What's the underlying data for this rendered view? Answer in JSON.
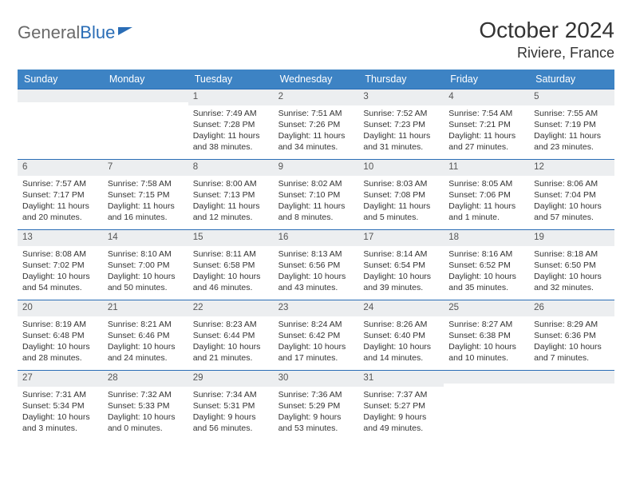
{
  "logo": {
    "part1": "General",
    "part2": "Blue"
  },
  "title": "October 2024",
  "location": "Riviere, France",
  "colors": {
    "brand_blue": "#2a6db6",
    "header_bg": "#3d83c4",
    "header_text": "#ffffff",
    "daynum_bg": "#eceef0",
    "text": "#333333",
    "border": "#2a6db6"
  },
  "dayHeaders": [
    "Sunday",
    "Monday",
    "Tuesday",
    "Wednesday",
    "Thursday",
    "Friday",
    "Saturday"
  ],
  "weeks": [
    [
      {
        "n": "",
        "lines": []
      },
      {
        "n": "",
        "lines": []
      },
      {
        "n": "1",
        "lines": [
          "Sunrise: 7:49 AM",
          "Sunset: 7:28 PM",
          "Daylight: 11 hours",
          "and 38 minutes."
        ]
      },
      {
        "n": "2",
        "lines": [
          "Sunrise: 7:51 AM",
          "Sunset: 7:26 PM",
          "Daylight: 11 hours",
          "and 34 minutes."
        ]
      },
      {
        "n": "3",
        "lines": [
          "Sunrise: 7:52 AM",
          "Sunset: 7:23 PM",
          "Daylight: 11 hours",
          "and 31 minutes."
        ]
      },
      {
        "n": "4",
        "lines": [
          "Sunrise: 7:54 AM",
          "Sunset: 7:21 PM",
          "Daylight: 11 hours",
          "and 27 minutes."
        ]
      },
      {
        "n": "5",
        "lines": [
          "Sunrise: 7:55 AM",
          "Sunset: 7:19 PM",
          "Daylight: 11 hours",
          "and 23 minutes."
        ]
      }
    ],
    [
      {
        "n": "6",
        "lines": [
          "Sunrise: 7:57 AM",
          "Sunset: 7:17 PM",
          "Daylight: 11 hours",
          "and 20 minutes."
        ]
      },
      {
        "n": "7",
        "lines": [
          "Sunrise: 7:58 AM",
          "Sunset: 7:15 PM",
          "Daylight: 11 hours",
          "and 16 minutes."
        ]
      },
      {
        "n": "8",
        "lines": [
          "Sunrise: 8:00 AM",
          "Sunset: 7:13 PM",
          "Daylight: 11 hours",
          "and 12 minutes."
        ]
      },
      {
        "n": "9",
        "lines": [
          "Sunrise: 8:02 AM",
          "Sunset: 7:10 PM",
          "Daylight: 11 hours",
          "and 8 minutes."
        ]
      },
      {
        "n": "10",
        "lines": [
          "Sunrise: 8:03 AM",
          "Sunset: 7:08 PM",
          "Daylight: 11 hours",
          "and 5 minutes."
        ]
      },
      {
        "n": "11",
        "lines": [
          "Sunrise: 8:05 AM",
          "Sunset: 7:06 PM",
          "Daylight: 11 hours",
          "and 1 minute."
        ]
      },
      {
        "n": "12",
        "lines": [
          "Sunrise: 8:06 AM",
          "Sunset: 7:04 PM",
          "Daylight: 10 hours",
          "and 57 minutes."
        ]
      }
    ],
    [
      {
        "n": "13",
        "lines": [
          "Sunrise: 8:08 AM",
          "Sunset: 7:02 PM",
          "Daylight: 10 hours",
          "and 54 minutes."
        ]
      },
      {
        "n": "14",
        "lines": [
          "Sunrise: 8:10 AM",
          "Sunset: 7:00 PM",
          "Daylight: 10 hours",
          "and 50 minutes."
        ]
      },
      {
        "n": "15",
        "lines": [
          "Sunrise: 8:11 AM",
          "Sunset: 6:58 PM",
          "Daylight: 10 hours",
          "and 46 minutes."
        ]
      },
      {
        "n": "16",
        "lines": [
          "Sunrise: 8:13 AM",
          "Sunset: 6:56 PM",
          "Daylight: 10 hours",
          "and 43 minutes."
        ]
      },
      {
        "n": "17",
        "lines": [
          "Sunrise: 8:14 AM",
          "Sunset: 6:54 PM",
          "Daylight: 10 hours",
          "and 39 minutes."
        ]
      },
      {
        "n": "18",
        "lines": [
          "Sunrise: 8:16 AM",
          "Sunset: 6:52 PM",
          "Daylight: 10 hours",
          "and 35 minutes."
        ]
      },
      {
        "n": "19",
        "lines": [
          "Sunrise: 8:18 AM",
          "Sunset: 6:50 PM",
          "Daylight: 10 hours",
          "and 32 minutes."
        ]
      }
    ],
    [
      {
        "n": "20",
        "lines": [
          "Sunrise: 8:19 AM",
          "Sunset: 6:48 PM",
          "Daylight: 10 hours",
          "and 28 minutes."
        ]
      },
      {
        "n": "21",
        "lines": [
          "Sunrise: 8:21 AM",
          "Sunset: 6:46 PM",
          "Daylight: 10 hours",
          "and 24 minutes."
        ]
      },
      {
        "n": "22",
        "lines": [
          "Sunrise: 8:23 AM",
          "Sunset: 6:44 PM",
          "Daylight: 10 hours",
          "and 21 minutes."
        ]
      },
      {
        "n": "23",
        "lines": [
          "Sunrise: 8:24 AM",
          "Sunset: 6:42 PM",
          "Daylight: 10 hours",
          "and 17 minutes."
        ]
      },
      {
        "n": "24",
        "lines": [
          "Sunrise: 8:26 AM",
          "Sunset: 6:40 PM",
          "Daylight: 10 hours",
          "and 14 minutes."
        ]
      },
      {
        "n": "25",
        "lines": [
          "Sunrise: 8:27 AM",
          "Sunset: 6:38 PM",
          "Daylight: 10 hours",
          "and 10 minutes."
        ]
      },
      {
        "n": "26",
        "lines": [
          "Sunrise: 8:29 AM",
          "Sunset: 6:36 PM",
          "Daylight: 10 hours",
          "and 7 minutes."
        ]
      }
    ],
    [
      {
        "n": "27",
        "lines": [
          "Sunrise: 7:31 AM",
          "Sunset: 5:34 PM",
          "Daylight: 10 hours",
          "and 3 minutes."
        ]
      },
      {
        "n": "28",
        "lines": [
          "Sunrise: 7:32 AM",
          "Sunset: 5:33 PM",
          "Daylight: 10 hours",
          "and 0 minutes."
        ]
      },
      {
        "n": "29",
        "lines": [
          "Sunrise: 7:34 AM",
          "Sunset: 5:31 PM",
          "Daylight: 9 hours",
          "and 56 minutes."
        ]
      },
      {
        "n": "30",
        "lines": [
          "Sunrise: 7:36 AM",
          "Sunset: 5:29 PM",
          "Daylight: 9 hours",
          "and 53 minutes."
        ]
      },
      {
        "n": "31",
        "lines": [
          "Sunrise: 7:37 AM",
          "Sunset: 5:27 PM",
          "Daylight: 9 hours",
          "and 49 minutes."
        ]
      },
      {
        "n": "",
        "lines": []
      },
      {
        "n": "",
        "lines": []
      }
    ]
  ]
}
